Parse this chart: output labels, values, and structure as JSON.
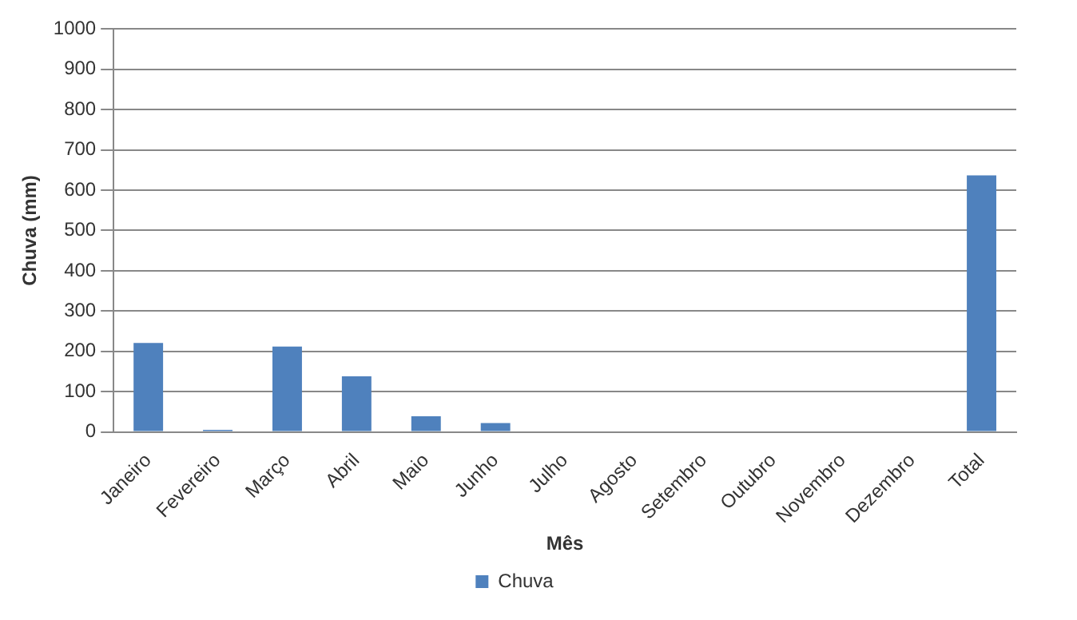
{
  "chart_data": {
    "type": "bar",
    "xlabel": "Mês",
    "ylabel": "Chuva (mm)",
    "categories": [
      "Janeiro",
      "Fevereiro",
      "Março",
      "Abril",
      "Maio",
      "Junho",
      "Julho",
      "Agosto",
      "Setembro",
      "Outubro",
      "Novembro",
      "Dezembro",
      "Total"
    ],
    "series": [
      {
        "name": "Chuva",
        "color": "#4f81bd",
        "values": [
          221,
          5,
          212,
          138,
          39,
          22,
          0,
          0,
          0,
          0,
          0,
          0,
          637
        ]
      }
    ],
    "ylim": [
      0,
      1000
    ],
    "yticks": [
      0,
      100,
      200,
      300,
      400,
      500,
      600,
      700,
      800,
      900,
      1000
    ],
    "grid": "y",
    "legend": "bottom"
  }
}
